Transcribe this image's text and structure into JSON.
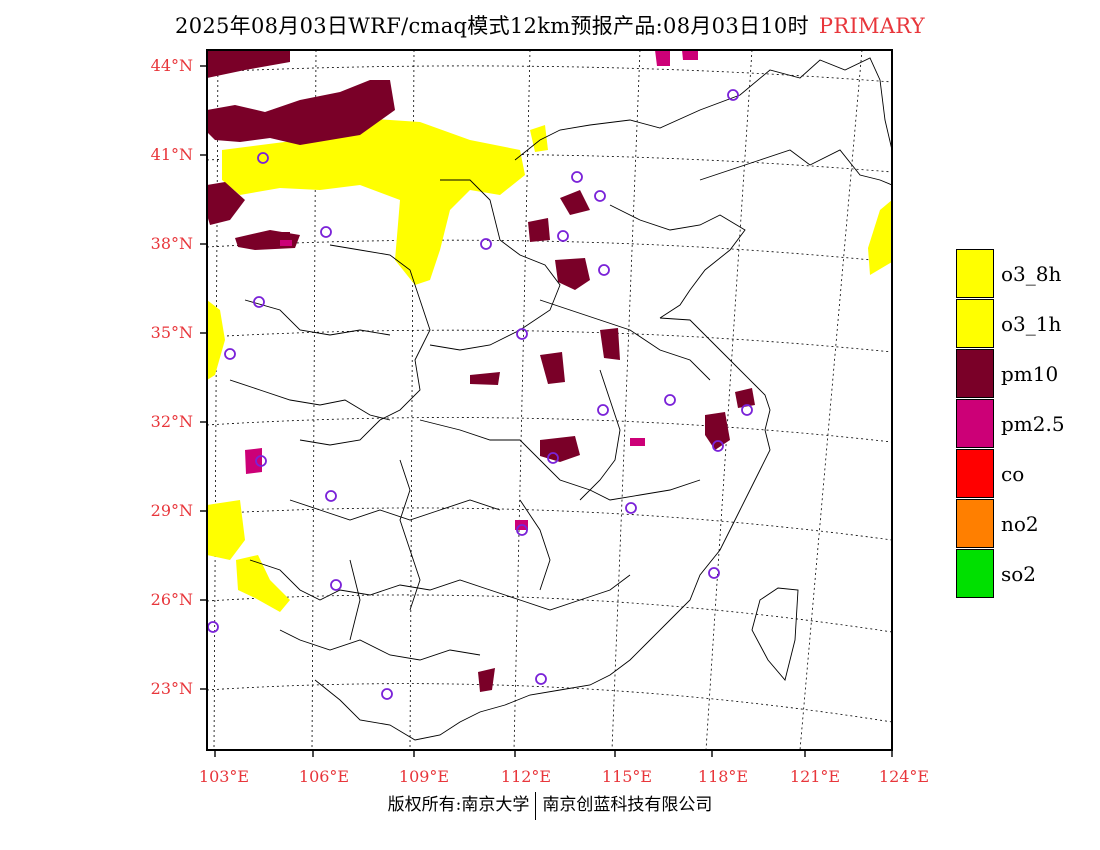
{
  "title": {
    "main": "2025年08月03日WRF/cmaq模式12km预报产品:08月03日10时",
    "accent": "PRIMARY"
  },
  "map": {
    "lat_labels": [
      "44°N",
      "41°N",
      "38°N",
      "35°N",
      "32°N",
      "29°N",
      "26°N",
      "23°N"
    ],
    "lon_labels": [
      "103°E",
      "106°E",
      "109°E",
      "112°E",
      "115°E",
      "118°E",
      "121°E",
      "124°E"
    ],
    "label_color": "#e8363b"
  },
  "legend": {
    "items": [
      {
        "label": "o3_8h",
        "color": "#ffff00"
      },
      {
        "label": "o3_1h",
        "color": "#ffff00"
      },
      {
        "label": "pm10",
        "color": "#7a0028"
      },
      {
        "label": "pm2.5",
        "color": "#cc0077"
      },
      {
        "label": "co",
        "color": "#ff0000"
      },
      {
        "label": "no2",
        "color": "#ff7f00"
      },
      {
        "label": "so2",
        "color": "#00e000"
      }
    ]
  },
  "footer": {
    "left": "版权所有:南京大学",
    "right": "南京创蓝科技有限公司"
  }
}
